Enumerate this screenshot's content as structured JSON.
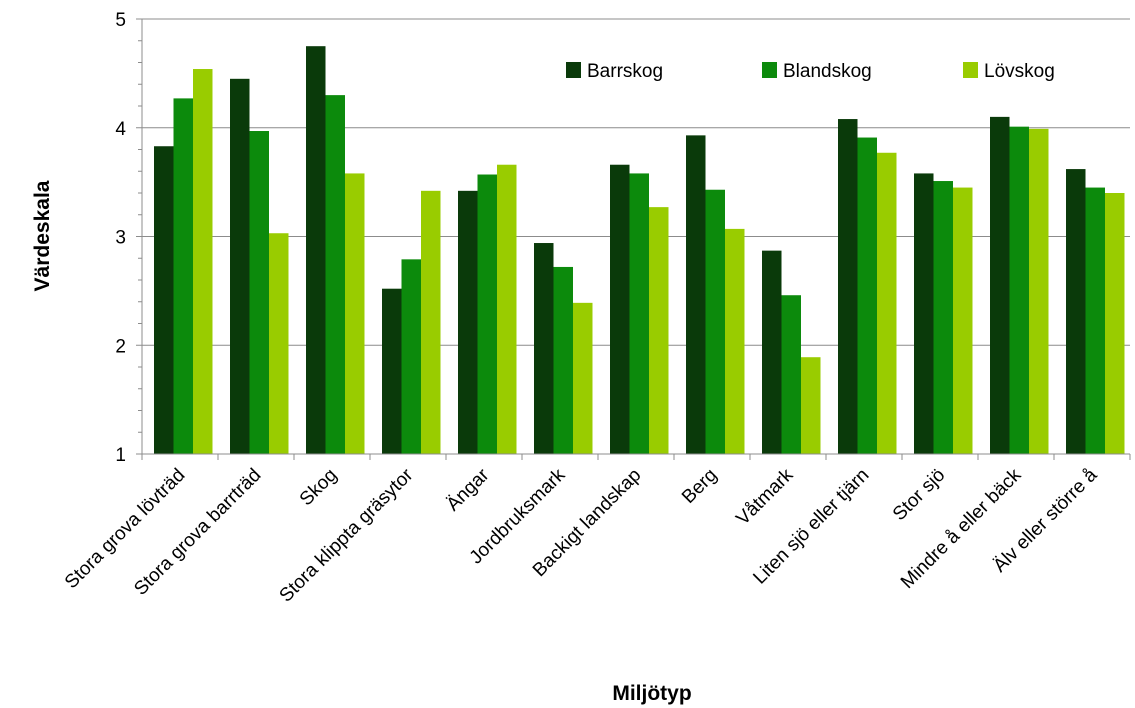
{
  "chart_data": {
    "type": "bar",
    "title": "",
    "xlabel": "Miljötyp",
    "ylabel": "Värdeskala",
    "ylim": [
      1,
      5
    ],
    "yticks": [
      1,
      2,
      3,
      4,
      5
    ],
    "grid": "horizontal",
    "legend_position": "top-right",
    "categories": [
      "Stora grova lövträd",
      "Stora grova barrträd",
      "Skog",
      "Stora klippta gräsytor",
      "Ängar",
      "Jordbruksmark",
      "Backigt landskap",
      "Berg",
      "Våtmark",
      "Liten sjö eller tjärn",
      "Stor sjö",
      "Mindre å eller bäck",
      "Älv eller större å"
    ],
    "series": [
      {
        "name": "Barrskog",
        "color": "#0a3a0a",
        "values": [
          3.83,
          4.45,
          4.75,
          2.52,
          3.42,
          2.94,
          3.66,
          3.93,
          2.87,
          4.08,
          3.58,
          4.1,
          3.62
        ]
      },
      {
        "name": "Blandskog",
        "color": "#0c8a0c",
        "values": [
          4.27,
          3.97,
          4.3,
          2.79,
          3.57,
          2.72,
          3.58,
          3.43,
          2.46,
          3.91,
          3.51,
          4.01,
          3.45
        ]
      },
      {
        "name": "Lövskog",
        "color": "#99cc00",
        "values": [
          4.54,
          3.03,
          3.58,
          3.42,
          3.66,
          2.39,
          3.27,
          3.07,
          1.89,
          3.77,
          3.45,
          3.99,
          3.4
        ]
      }
    ]
  }
}
